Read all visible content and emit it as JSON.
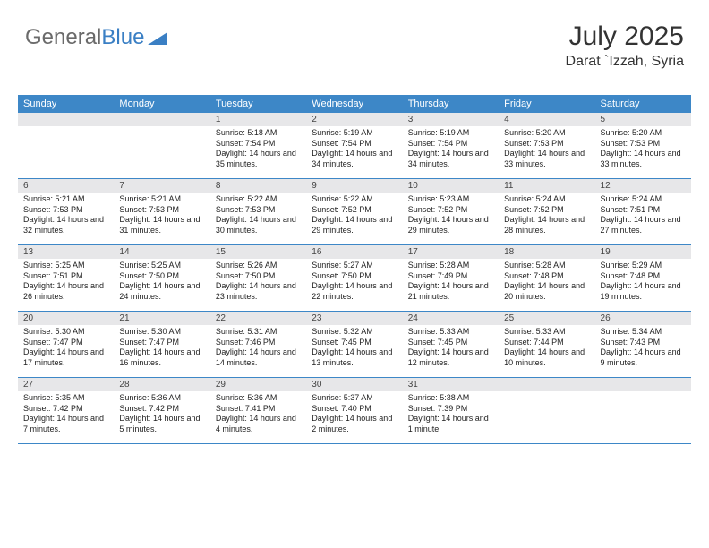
{
  "brand": {
    "part1": "General",
    "part2": "Blue"
  },
  "title": {
    "month": "July 2025",
    "location": "Darat `Izzah, Syria"
  },
  "style": {
    "header_bg": "#3d87c7",
    "header_text": "#ffffff",
    "daynum_bg": "#e7e7e9",
    "body_text": "#222222",
    "border_color": "#3d87c7",
    "logo_gray": "#6a6a6a",
    "logo_blue": "#3a7fc4",
    "page_bg": "#ffffff",
    "header_fontsize": 11,
    "body_fontsize": 9,
    "month_fontsize": 30,
    "location_fontsize": 16
  },
  "dayNames": [
    "Sunday",
    "Monday",
    "Tuesday",
    "Wednesday",
    "Thursday",
    "Friday",
    "Saturday"
  ],
  "weeks": [
    [
      null,
      null,
      {
        "n": "1",
        "sr": "5:18 AM",
        "ss": "7:54 PM",
        "dl": "14 hours and 35 minutes."
      },
      {
        "n": "2",
        "sr": "5:19 AM",
        "ss": "7:54 PM",
        "dl": "14 hours and 34 minutes."
      },
      {
        "n": "3",
        "sr": "5:19 AM",
        "ss": "7:54 PM",
        "dl": "14 hours and 34 minutes."
      },
      {
        "n": "4",
        "sr": "5:20 AM",
        "ss": "7:53 PM",
        "dl": "14 hours and 33 minutes."
      },
      {
        "n": "5",
        "sr": "5:20 AM",
        "ss": "7:53 PM",
        "dl": "14 hours and 33 minutes."
      }
    ],
    [
      {
        "n": "6",
        "sr": "5:21 AM",
        "ss": "7:53 PM",
        "dl": "14 hours and 32 minutes."
      },
      {
        "n": "7",
        "sr": "5:21 AM",
        "ss": "7:53 PM",
        "dl": "14 hours and 31 minutes."
      },
      {
        "n": "8",
        "sr": "5:22 AM",
        "ss": "7:53 PM",
        "dl": "14 hours and 30 minutes."
      },
      {
        "n": "9",
        "sr": "5:22 AM",
        "ss": "7:52 PM",
        "dl": "14 hours and 29 minutes."
      },
      {
        "n": "10",
        "sr": "5:23 AM",
        "ss": "7:52 PM",
        "dl": "14 hours and 29 minutes."
      },
      {
        "n": "11",
        "sr": "5:24 AM",
        "ss": "7:52 PM",
        "dl": "14 hours and 28 minutes."
      },
      {
        "n": "12",
        "sr": "5:24 AM",
        "ss": "7:51 PM",
        "dl": "14 hours and 27 minutes."
      }
    ],
    [
      {
        "n": "13",
        "sr": "5:25 AM",
        "ss": "7:51 PM",
        "dl": "14 hours and 26 minutes."
      },
      {
        "n": "14",
        "sr": "5:25 AM",
        "ss": "7:50 PM",
        "dl": "14 hours and 24 minutes."
      },
      {
        "n": "15",
        "sr": "5:26 AM",
        "ss": "7:50 PM",
        "dl": "14 hours and 23 minutes."
      },
      {
        "n": "16",
        "sr": "5:27 AM",
        "ss": "7:50 PM",
        "dl": "14 hours and 22 minutes."
      },
      {
        "n": "17",
        "sr": "5:28 AM",
        "ss": "7:49 PM",
        "dl": "14 hours and 21 minutes."
      },
      {
        "n": "18",
        "sr": "5:28 AM",
        "ss": "7:48 PM",
        "dl": "14 hours and 20 minutes."
      },
      {
        "n": "19",
        "sr": "5:29 AM",
        "ss": "7:48 PM",
        "dl": "14 hours and 19 minutes."
      }
    ],
    [
      {
        "n": "20",
        "sr": "5:30 AM",
        "ss": "7:47 PM",
        "dl": "14 hours and 17 minutes."
      },
      {
        "n": "21",
        "sr": "5:30 AM",
        "ss": "7:47 PM",
        "dl": "14 hours and 16 minutes."
      },
      {
        "n": "22",
        "sr": "5:31 AM",
        "ss": "7:46 PM",
        "dl": "14 hours and 14 minutes."
      },
      {
        "n": "23",
        "sr": "5:32 AM",
        "ss": "7:45 PM",
        "dl": "14 hours and 13 minutes."
      },
      {
        "n": "24",
        "sr": "5:33 AM",
        "ss": "7:45 PM",
        "dl": "14 hours and 12 minutes."
      },
      {
        "n": "25",
        "sr": "5:33 AM",
        "ss": "7:44 PM",
        "dl": "14 hours and 10 minutes."
      },
      {
        "n": "26",
        "sr": "5:34 AM",
        "ss": "7:43 PM",
        "dl": "14 hours and 9 minutes."
      }
    ],
    [
      {
        "n": "27",
        "sr": "5:35 AM",
        "ss": "7:42 PM",
        "dl": "14 hours and 7 minutes."
      },
      {
        "n": "28",
        "sr": "5:36 AM",
        "ss": "7:42 PM",
        "dl": "14 hours and 5 minutes."
      },
      {
        "n": "29",
        "sr": "5:36 AM",
        "ss": "7:41 PM",
        "dl": "14 hours and 4 minutes."
      },
      {
        "n": "30",
        "sr": "5:37 AM",
        "ss": "7:40 PM",
        "dl": "14 hours and 2 minutes."
      },
      {
        "n": "31",
        "sr": "5:38 AM",
        "ss": "7:39 PM",
        "dl": "14 hours and 1 minute."
      },
      null,
      null
    ]
  ],
  "labels": {
    "sunrise": "Sunrise:",
    "sunset": "Sunset:",
    "daylight": "Daylight:"
  }
}
